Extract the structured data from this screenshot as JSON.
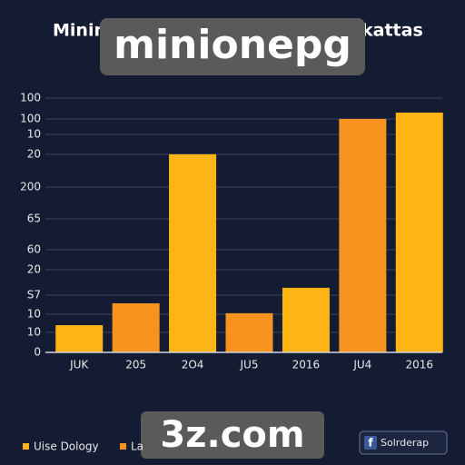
{
  "chart_data": {
    "type": "bar",
    "title_parts": [
      "Minin",
      "kattas"
    ],
    "categories": [
      "JUK",
      "205",
      "2O4",
      "JU5",
      "2016",
      "JU4",
      "2016"
    ],
    "values": [
      10.7,
      19.3,
      77.9,
      15.4,
      25.4,
      91.8,
      94.3
    ],
    "colors": [
      "#fdb515",
      "#f7931e",
      "#fdb515",
      "#f7931e",
      "#fdb515",
      "#f7931e",
      "#fdb515"
    ],
    "ylim": [
      0,
      100
    ],
    "yticks": [
      0,
      {
        "value": 7.9,
        "label": "10"
      },
      {
        "value": 15,
        "label": "10"
      },
      {
        "value": 22.5,
        "label": "S7"
      },
      {
        "value": 32.5,
        "label": "20"
      },
      {
        "value": 40.4,
        "label": "60"
      },
      {
        "value": 52.5,
        "label": "65"
      },
      {
        "value": 65,
        "label": "200"
      },
      {
        "value": 77.9,
        "label": "20"
      },
      {
        "value": 85.7,
        "label": "10"
      },
      {
        "value": 91.8,
        "label": "100"
      },
      100
    ],
    "grid": true,
    "legend": [
      {
        "name": "Uise Dology",
        "color": "#fdb515"
      },
      {
        "name": "La",
        "color": "#f7931e"
      }
    ]
  },
  "watermarks": [
    "minionepg",
    "3z.com"
  ],
  "button": {
    "icon": "f",
    "label": "Solrderap"
  }
}
